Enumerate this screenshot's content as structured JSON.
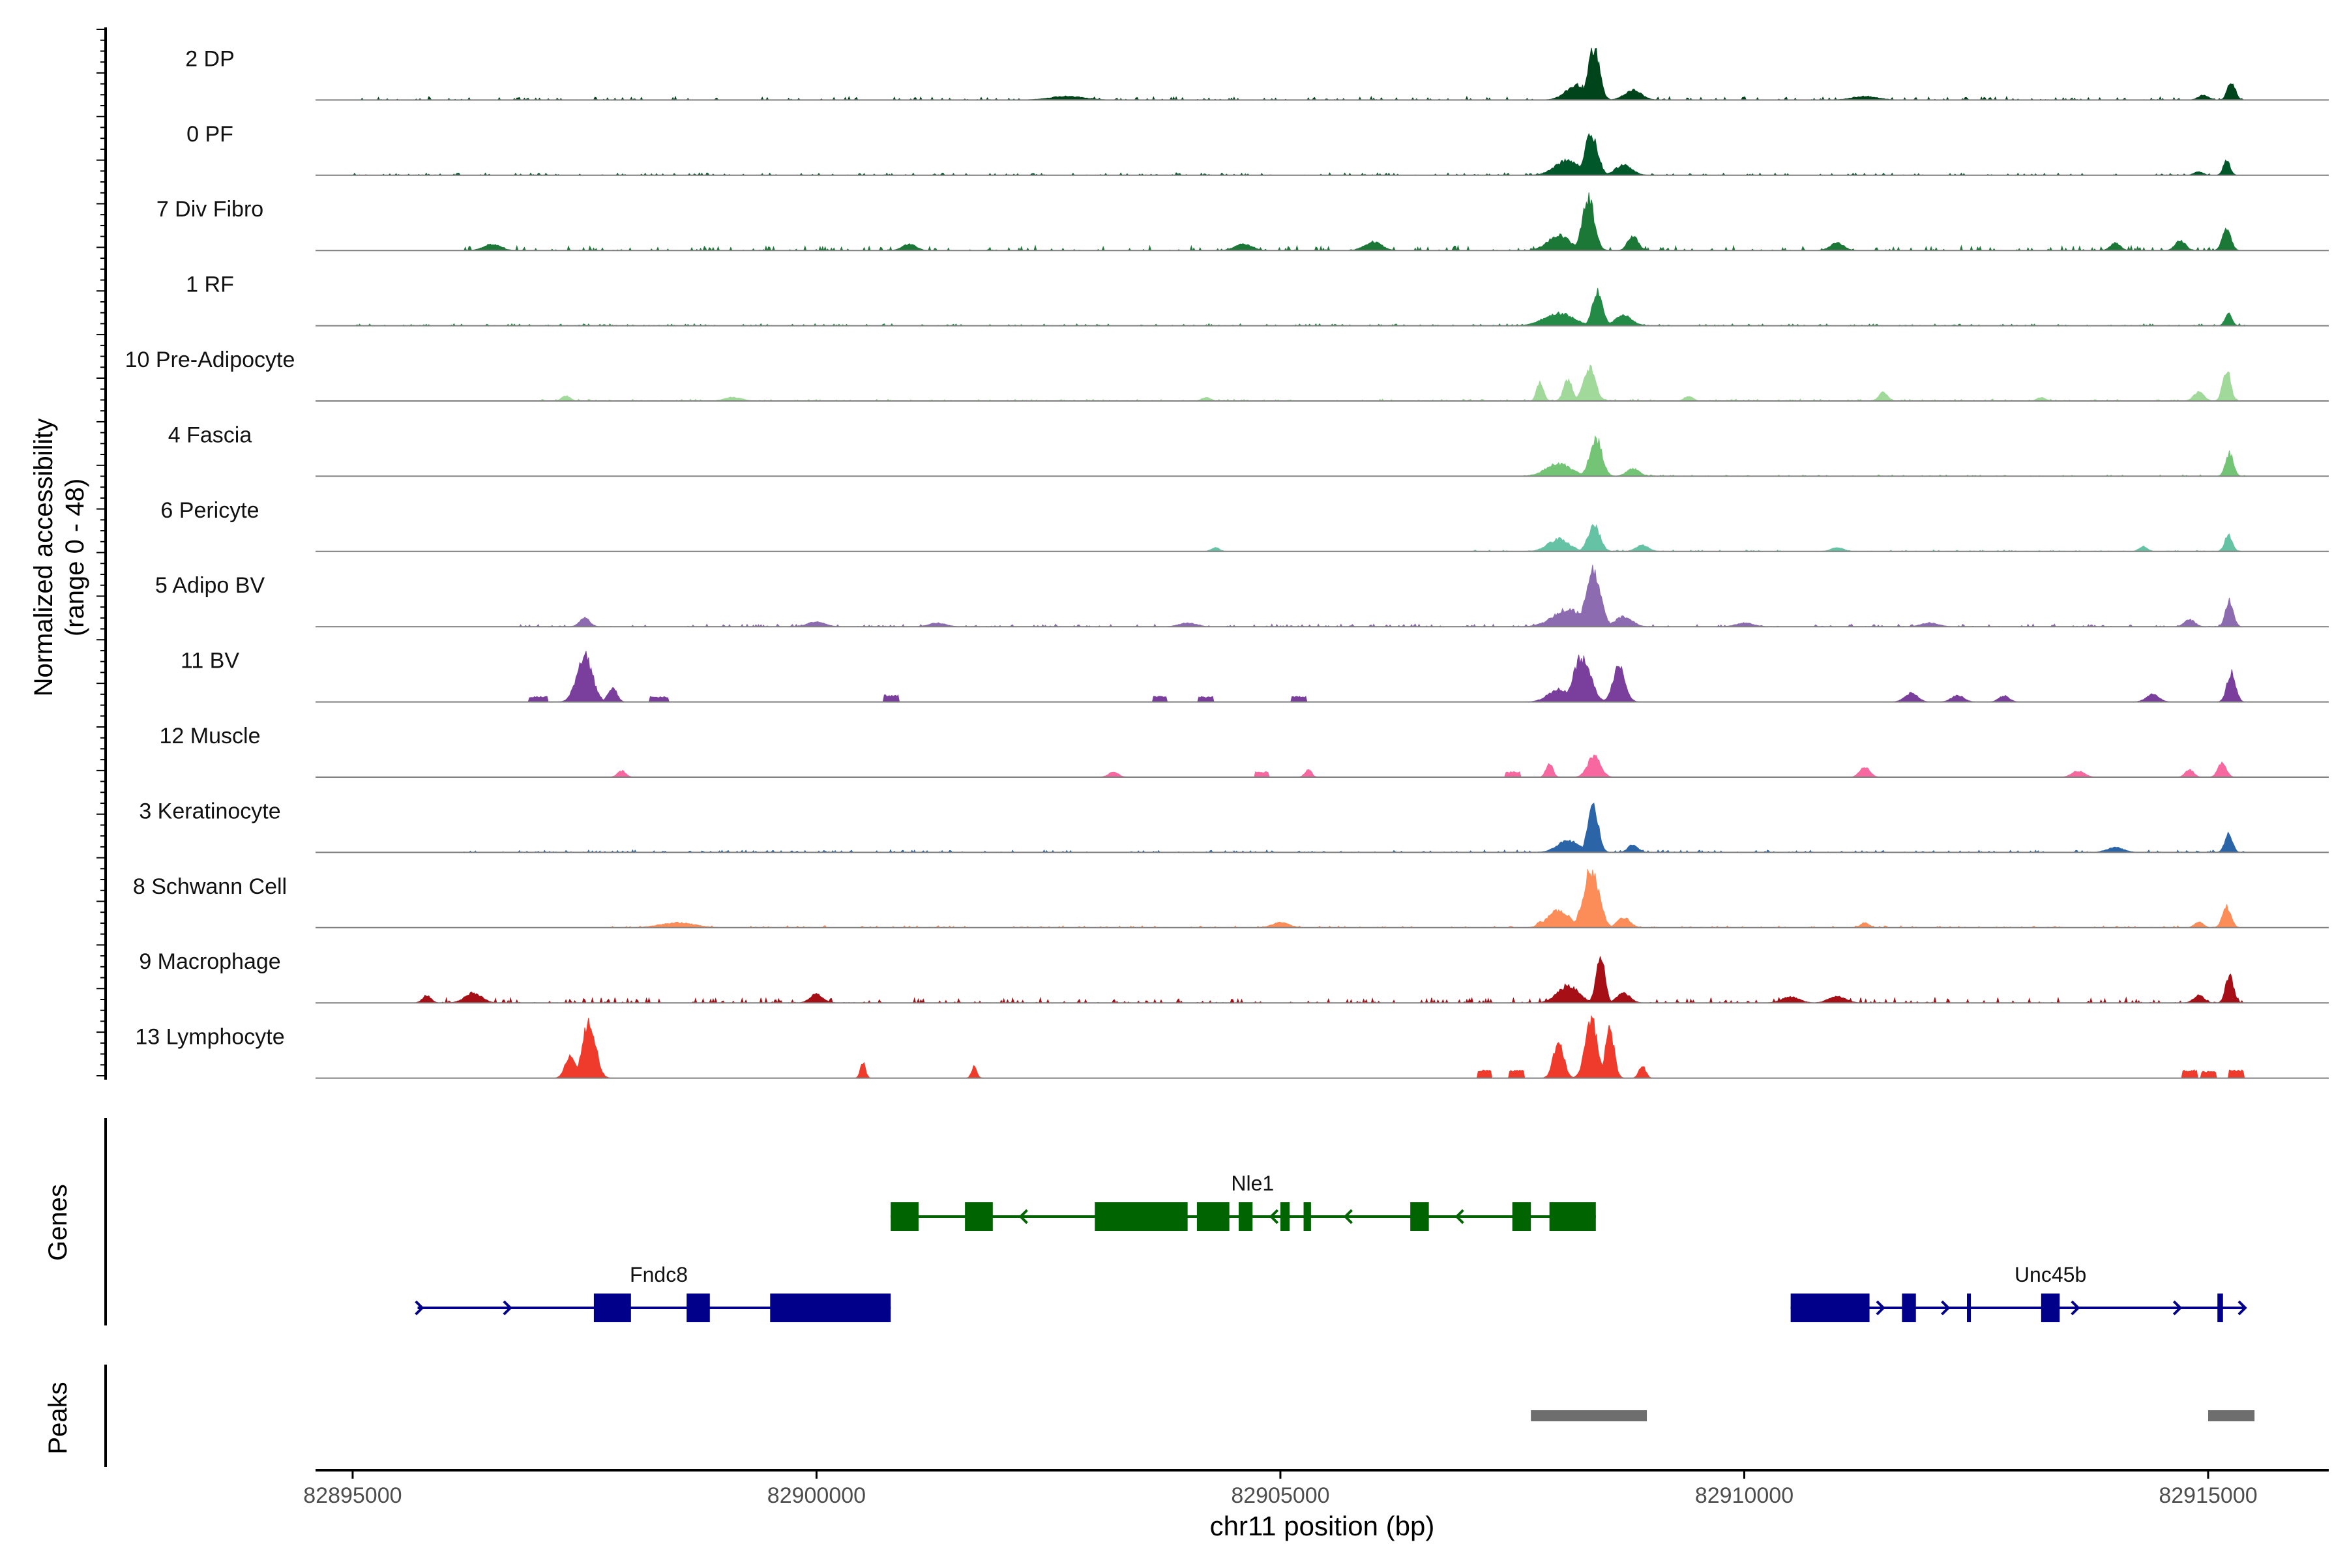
{
  "chart_data": {
    "type": "area",
    "title": "",
    "xlabel": "chr11 position (bp)",
    "ylabel_line1": "Normalized accessibility",
    "ylabel_line2": "(range 0 - 48)",
    "ylim": [
      0,
      48
    ],
    "xlim": [
      82894600,
      82916300
    ],
    "x_ticks": [
      82895000,
      82900000,
      82905000,
      82910000,
      82915000
    ],
    "x_tick_labels": [
      "82895000",
      "82900000",
      "82905000",
      "82910000",
      "82915000"
    ],
    "tracks": [
      {
        "name": "2 DP",
        "color": "#00441b",
        "peaks": [
          [
            82908380,
            42,
            130,
            "triangle"
          ],
          [
            82908200,
            12,
            260,
            "triangle"
          ],
          [
            82908800,
            8,
            200,
            "triangle"
          ],
          [
            82915250,
            15,
            90,
            "triangle"
          ],
          [
            82914950,
            4,
            120,
            "triangle"
          ],
          [
            82902700,
            3,
            400,
            "triangle"
          ],
          [
            82911300,
            3,
            300,
            "triangle"
          ]
        ],
        "noise": 2.5,
        "noise_range": [
          82895000,
          82915400
        ]
      },
      {
        "name": "0 PF",
        "color": "#00582a",
        "peaks": [
          [
            82908350,
            33,
            150,
            "triangle"
          ],
          [
            82908100,
            12,
            300,
            "triangle"
          ],
          [
            82908700,
            8,
            200,
            "triangle"
          ],
          [
            82915200,
            12,
            80,
            "triangle"
          ],
          [
            82914900,
            3,
            100,
            "triangle"
          ]
        ],
        "noise": 1.8,
        "noise_range": [
          82895000,
          82915400
        ]
      },
      {
        "name": "7 Div Fibro",
        "color": "#1b7837",
        "peaks": [
          [
            82908320,
            42,
            140,
            "triangle"
          ],
          [
            82908000,
            12,
            260,
            "triangle"
          ],
          [
            82908800,
            12,
            120,
            "triangle"
          ],
          [
            82915200,
            17,
            100,
            "triangle"
          ],
          [
            82914700,
            8,
            120,
            "triangle"
          ],
          [
            82914000,
            6,
            120,
            "triangle"
          ],
          [
            82911000,
            6,
            160,
            "triangle"
          ],
          [
            82906000,
            7,
            200,
            "triangle"
          ],
          [
            82904600,
            5,
            200,
            "triangle"
          ],
          [
            82901000,
            5,
            160,
            "triangle"
          ],
          [
            82896500,
            5,
            200,
            "triangle"
          ]
        ],
        "noise": 3.5,
        "noise_range": [
          82896200,
          82915400
        ]
      },
      {
        "name": "1 RF",
        "color": "#238b45",
        "peaks": [
          [
            82908420,
            27,
            120,
            "triangle"
          ],
          [
            82908000,
            10,
            350,
            "triangle"
          ],
          [
            82908700,
            8,
            200,
            "triangle"
          ],
          [
            82915220,
            10,
            80,
            "triangle"
          ]
        ],
        "noise": 1.5,
        "noise_range": [
          82895000,
          82915400
        ]
      },
      {
        "name": "10 Pre-Adipocyte",
        "color": "#a1d99b",
        "peaks": [
          [
            82908330,
            27,
            140,
            "triangle"
          ],
          [
            82907800,
            15,
            80,
            "triangle"
          ],
          [
            82908100,
            18,
            100,
            "triangle"
          ],
          [
            82915200,
            26,
            90,
            "triangle"
          ],
          [
            82914900,
            7,
            120,
            "triangle"
          ],
          [
            82911500,
            7,
            100,
            "triangle"
          ],
          [
            82897300,
            4,
            100,
            "triangle"
          ],
          [
            82899100,
            3,
            200,
            "triangle"
          ],
          [
            82904200,
            3,
            100,
            "triangle"
          ],
          [
            82913200,
            3,
            100,
            "triangle"
          ],
          [
            82909400,
            4,
            100,
            "triangle"
          ]
        ],
        "noise": 1.5,
        "noise_range": [
          82897000,
          82915400
        ]
      },
      {
        "name": "4 Fascia",
        "color": "#74c476",
        "peaks": [
          [
            82908400,
            31,
            140,
            "triangle"
          ],
          [
            82908000,
            10,
            300,
            "triangle"
          ],
          [
            82908800,
            6,
            150,
            "triangle"
          ],
          [
            82915230,
            19,
            90,
            "triangle"
          ]
        ],
        "noise": 1.0,
        "noise_range": [
          82907600,
          82915400
        ]
      },
      {
        "name": "6 Pericyte",
        "color": "#66c2a4",
        "peaks": [
          [
            82908380,
            21,
            140,
            "triangle"
          ],
          [
            82908000,
            10,
            250,
            "triangle"
          ],
          [
            82908900,
            5,
            150,
            "triangle"
          ],
          [
            82915220,
            13,
            90,
            "triangle"
          ],
          [
            82914300,
            4,
            100,
            "triangle"
          ],
          [
            82911000,
            3,
            150,
            "triangle"
          ],
          [
            82904300,
            3,
            100,
            "triangle"
          ]
        ],
        "noise": 1.2,
        "noise_range": [
          82907000,
          82915400
        ]
      },
      {
        "name": "5 Adipo BV",
        "color": "#8c6bb1",
        "peaks": [
          [
            82908370,
            46,
            170,
            "triangle"
          ],
          [
            82908100,
            14,
            350,
            "triangle"
          ],
          [
            82908700,
            8,
            200,
            "triangle"
          ],
          [
            82915230,
            21,
            90,
            "triangle"
          ],
          [
            82914800,
            6,
            120,
            "triangle"
          ],
          [
            82897500,
            7,
            120,
            "triangle"
          ],
          [
            82900000,
            4,
            200,
            "triangle"
          ],
          [
            82901300,
            3,
            200,
            "triangle"
          ],
          [
            82904000,
            3,
            200,
            "triangle"
          ],
          [
            82910000,
            3,
            200,
            "triangle"
          ],
          [
            82912000,
            3,
            200,
            "triangle"
          ]
        ],
        "noise": 2.0,
        "noise_range": [
          82896800,
          82915400
        ]
      },
      {
        "name": "11 BV",
        "color": "#7a3e9d",
        "peaks": [
          [
            82897500,
            38,
            180,
            "triangle"
          ],
          [
            82897800,
            12,
            100,
            "triangle"
          ],
          [
            82908250,
            36,
            200,
            "triangle"
          ],
          [
            82908650,
            30,
            140,
            "triangle"
          ],
          [
            82908000,
            10,
            250,
            "triangle"
          ],
          [
            82915250,
            24,
            100,
            "triangle"
          ],
          [
            82914400,
            6,
            150,
            "triangle"
          ],
          [
            82911800,
            7,
            150,
            "triangle"
          ],
          [
            82912300,
            5,
            150,
            "triangle"
          ],
          [
            82912800,
            5,
            120,
            "triangle"
          ],
          [
            82900800,
            5,
            80,
            "block"
          ],
          [
            82903700,
            4,
            80,
            "block"
          ],
          [
            82904200,
            4,
            80,
            "block"
          ],
          [
            82905200,
            4,
            80,
            "block"
          ],
          [
            82898300,
            4,
            100,
            "block"
          ],
          [
            82897000,
            4,
            100,
            "block"
          ]
        ],
        "noise": 0,
        "noise_range": [
          82896900,
          82915400
        ]
      },
      {
        "name": "12 Muscle",
        "color": "#f768a1",
        "peaks": [
          [
            82908380,
            17,
            150,
            "triangle"
          ],
          [
            82907900,
            11,
            80,
            "triangle"
          ],
          [
            82915150,
            11,
            100,
            "triangle"
          ],
          [
            82914800,
            6,
            100,
            "triangle"
          ],
          [
            82913600,
            5,
            150,
            "triangle"
          ],
          [
            82911300,
            8,
            120,
            "triangle"
          ],
          [
            82905300,
            6,
            80,
            "triangle"
          ],
          [
            82904800,
            4,
            80,
            "block"
          ],
          [
            82903200,
            4,
            120,
            "triangle"
          ],
          [
            82897900,
            5,
            100,
            "triangle"
          ],
          [
            82907500,
            4,
            80,
            "block"
          ]
        ],
        "noise": 0,
        "noise_range": [
          82897800,
          82915400
        ]
      },
      {
        "name": "3 Keratinocyte",
        "color": "#2c65a7",
        "peaks": [
          [
            82908370,
            38,
            120,
            "triangle"
          ],
          [
            82908100,
            10,
            250,
            "triangle"
          ],
          [
            82908800,
            6,
            120,
            "triangle"
          ],
          [
            82915220,
            15,
            90,
            "triangle"
          ],
          [
            82914000,
            4,
            200,
            "triangle"
          ]
        ],
        "noise": 1.8,
        "noise_range": [
          82896000,
          82915400
        ]
      },
      {
        "name": "8 Schwann Cell",
        "color": "#fc8d59",
        "peaks": [
          [
            82908350,
            47,
            180,
            "triangle"
          ],
          [
            82908000,
            14,
            250,
            "triangle"
          ],
          [
            82908700,
            8,
            150,
            "triangle"
          ],
          [
            82915200,
            17,
            100,
            "triangle"
          ],
          [
            82914900,
            5,
            100,
            "triangle"
          ],
          [
            82898500,
            4,
            400,
            "triangle"
          ],
          [
            82905000,
            4,
            200,
            "triangle"
          ],
          [
            82911300,
            4,
            100,
            "triangle"
          ],
          [
            82907800,
            5,
            80,
            "triangle"
          ]
        ],
        "noise": 1.5,
        "noise_range": [
          82897800,
          82915400
        ]
      },
      {
        "name": "9 Macrophage",
        "color": "#a50f15",
        "peaks": [
          [
            82908450,
            40,
            100,
            "triangle"
          ],
          [
            82908100,
            14,
            250,
            "triangle"
          ],
          [
            82908700,
            8,
            150,
            "triangle"
          ],
          [
            82915230,
            23,
            90,
            "triangle"
          ],
          [
            82914900,
            6,
            120,
            "triangle"
          ],
          [
            82896300,
            8,
            200,
            "triangle"
          ],
          [
            82895800,
            6,
            100,
            "triangle"
          ],
          [
            82900000,
            7,
            150,
            "triangle"
          ],
          [
            82910500,
            5,
            200,
            "triangle"
          ],
          [
            82911000,
            5,
            200,
            "triangle"
          ]
        ],
        "noise": 4.0,
        "noise_range": [
          82895700,
          82915400
        ]
      },
      {
        "name": "13 Lymphocyte",
        "color": "#ef3b2c",
        "peaks": [
          [
            82897550,
            46,
            150,
            "triangle"
          ],
          [
            82897350,
            20,
            120,
            "triangle"
          ],
          [
            82900500,
            13,
            60,
            "triangle"
          ],
          [
            82901700,
            10,
            60,
            "triangle"
          ],
          [
            82908000,
            30,
            120,
            "triangle"
          ],
          [
            82908350,
            48,
            140,
            "triangle"
          ],
          [
            82908550,
            40,
            100,
            "triangle"
          ],
          [
            82908900,
            10,
            80,
            "triangle"
          ],
          [
            82907200,
            6,
            80,
            "block"
          ],
          [
            82907550,
            6,
            80,
            "block"
          ],
          [
            82914800,
            6,
            80,
            "block"
          ],
          [
            82915000,
            5,
            80,
            "block"
          ],
          [
            82915300,
            6,
            80,
            "block"
          ]
        ],
        "noise": 0,
        "noise_range": [
          82897000,
          82915400
        ]
      }
    ],
    "genes_label": "Genes",
    "peaks_label": "Peaks",
    "genes": [
      {
        "name": "Nle1",
        "strand": "-",
        "color": "#006400",
        "start": 82900800,
        "end": 82908400,
        "row": 1,
        "exons": [
          [
            82900800,
            82901100
          ],
          [
            82901600,
            82901900
          ],
          [
            82903000,
            82904000
          ],
          [
            82904100,
            82904450
          ],
          [
            82904550,
            82904700
          ],
          [
            82905000,
            82905100
          ],
          [
            82905250,
            82905330
          ],
          [
            82906400,
            82906600
          ],
          [
            82907500,
            82907700
          ],
          [
            82907900,
            82908400
          ]
        ],
        "arrows": [
          82902200,
          82904900,
          82905700,
          82906900,
          82908000
        ]
      },
      {
        "name": "Fndc8",
        "strand": "+",
        "color": "#00008b",
        "start": 82895700,
        "end": 82900800,
        "row": 2,
        "exons": [
          [
            82897600,
            82898000
          ],
          [
            82898600,
            82898850
          ],
          [
            82899500,
            82900800
          ]
        ],
        "arrows": [
          82895750,
          82896700
        ]
      },
      {
        "name": "Unc45b",
        "strand": "+",
        "color": "#00008b",
        "start": 82910500,
        "end": 82915400,
        "row": 2,
        "exons": [
          [
            82910500,
            82911350
          ],
          [
            82911700,
            82911850
          ],
          [
            82912400,
            82912420
          ],
          [
            82913200,
            82913400
          ],
          [
            82915100,
            82915160
          ]
        ],
        "arrows": [
          82911500,
          82912200,
          82913600,
          82914700,
          82915400
        ]
      }
    ],
    "peak_regions": [
      [
        82907700,
        82908950
      ],
      [
        82915000,
        82915500
      ]
    ]
  }
}
